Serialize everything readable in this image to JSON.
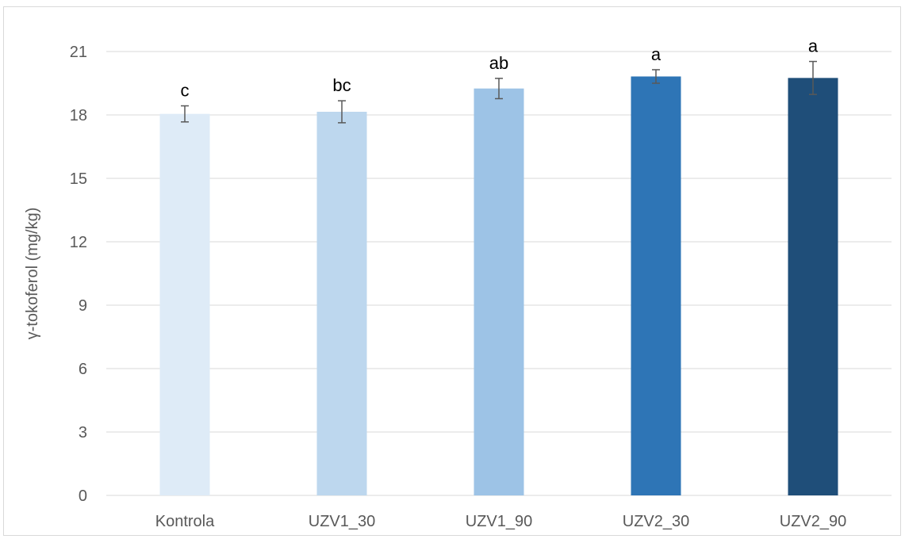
{
  "chart_data": {
    "type": "bar",
    "title": "",
    "xlabel": "",
    "ylabel": "γ-tokoferol (mg/kg)",
    "ylim": [
      0,
      21
    ],
    "yticks": [
      0,
      3,
      6,
      9,
      12,
      15,
      18,
      21
    ],
    "grid": true,
    "legend": "none",
    "categories": [
      "Kontrola",
      "UZV1_30",
      "UZV1_90",
      "UZV2_30",
      "UZV2_90"
    ],
    "values": [
      18.05,
      18.15,
      19.25,
      19.82,
      19.75
    ],
    "errors": [
      0.38,
      0.52,
      0.48,
      0.32,
      0.78
    ],
    "letters": [
      "c",
      "bc",
      "ab",
      "a",
      "a"
    ],
    "colors": [
      "#deebf7",
      "#bdd7ee",
      "#9dc3e6",
      "#2e75b6",
      "#1f4e79"
    ],
    "grid_color": "#d9d9d9",
    "error_color": "#595959"
  }
}
